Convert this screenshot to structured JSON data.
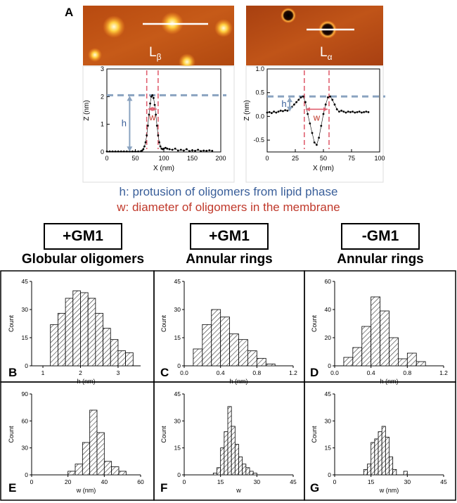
{
  "panel_letters": {
    "A": "A",
    "B": "B",
    "C": "C",
    "D": "D",
    "E": "E",
    "F": "F",
    "G": "G"
  },
  "afm": {
    "left": {
      "label": "L",
      "sub": "β"
    },
    "right": {
      "label": "L",
      "sub": "α"
    }
  },
  "captions": {
    "h": "h: protusion of oligomers from lipid phase",
    "w": "w: diameter of oligomers in the membrane"
  },
  "colors": {
    "h_caption": "#3a5f9a",
    "w_caption": "#c0392b",
    "dashed": "#8aa3c0",
    "red_line": "#e06070",
    "arrow_blue": "#8aa3c0",
    "arrow_red": "#e06070"
  },
  "conditions": [
    {
      "box": "+GM1",
      "subtitle": "Globular oligomers"
    },
    {
      "box": "+GM1",
      "subtitle": "Annular rings"
    },
    {
      "box": "-GM1",
      "subtitle": "Annular rings"
    }
  ],
  "chart_data": [
    {
      "id": "A-left",
      "type": "line",
      "xlabel": "X (nm)",
      "ylabel": "Z (nm)",
      "xlim": [
        0,
        200
      ],
      "ylim": [
        0,
        3
      ],
      "xticks": [
        0,
        50,
        100,
        150,
        200
      ],
      "yticks": [
        0,
        1,
        2,
        3
      ],
      "dashed_h": 2.05,
      "red_lines": [
        70,
        90
      ],
      "h_label": "h",
      "w_label": "w",
      "x": [
        0,
        5,
        10,
        15,
        20,
        25,
        30,
        35,
        40,
        45,
        50,
        55,
        60,
        62,
        64,
        66,
        68,
        70,
        72,
        74,
        76,
        78,
        80,
        82,
        84,
        86,
        88,
        90,
        92,
        94,
        96,
        98,
        100,
        103,
        106,
        110,
        115,
        120,
        125,
        130,
        135,
        140,
        145,
        150,
        155,
        160,
        165,
        170,
        175,
        180,
        185
      ],
      "y": [
        0.02,
        0.02,
        0.02,
        0.02,
        0.02,
        0.02,
        0.02,
        0.02,
        0.02,
        0.02,
        0.02,
        0.02,
        0.03,
        0.05,
        0.1,
        0.2,
        0.35,
        0.6,
        0.95,
        1.35,
        1.75,
        2.0,
        2.05,
        1.95,
        1.7,
        1.35,
        0.95,
        0.6,
        0.35,
        0.2,
        0.12,
        0.1,
        0.12,
        0.15,
        0.12,
        0.1,
        0.08,
        0.12,
        0.05,
        0.08,
        0.05,
        0.1,
        0.03,
        0.06,
        0.04,
        0.08,
        0.03,
        0.05,
        0.04,
        0.06,
        0.04
      ]
    },
    {
      "id": "A-right",
      "type": "line",
      "xlabel": "X (nm)",
      "ylabel": "Z (nm)",
      "xlim": [
        0,
        100
      ],
      "ylim": [
        -0.75,
        1.0
      ],
      "xticks": [
        0,
        25,
        50,
        75,
        100
      ],
      "yticks": [
        -0.5,
        0.0,
        0.5,
        1.0
      ],
      "ytick_labels": [
        "-0.5",
        "0.0",
        "0.5",
        "1.0"
      ],
      "dashed_h": 0.42,
      "red_lines": [
        33,
        55
      ],
      "h_label": "h",
      "w_label": "w",
      "x": [
        0,
        2,
        4,
        6,
        8,
        10,
        12,
        14,
        16,
        18,
        20,
        22,
        24,
        26,
        28,
        30,
        32,
        34,
        36,
        38,
        40,
        42,
        44,
        46,
        48,
        50,
        52,
        54,
        56,
        58,
        60,
        62,
        64,
        66,
        68,
        70,
        72,
        74,
        76,
        78,
        80,
        82,
        84,
        86,
        88,
        90
      ],
      "y": [
        0.08,
        0.09,
        0.07,
        0.1,
        0.08,
        0.1,
        0.12,
        0.11,
        0.13,
        0.12,
        0.15,
        0.2,
        0.25,
        0.3,
        0.35,
        0.4,
        0.42,
        0.3,
        0.05,
        -0.15,
        -0.35,
        -0.55,
        -0.6,
        -0.45,
        -0.2,
        0.05,
        0.25,
        0.4,
        0.42,
        0.35,
        0.25,
        0.15,
        0.1,
        0.12,
        0.1,
        0.08,
        0.1,
        0.09,
        0.1,
        0.08,
        0.09,
        0.1,
        0.08,
        0.09,
        0.1,
        0.09
      ]
    },
    {
      "id": "B",
      "type": "bar",
      "xlabel": "h (nm)",
      "ylabel": "Count",
      "xlim": [
        0.7,
        3.6
      ],
      "ylim": [
        0,
        45
      ],
      "xticks": [
        1,
        2,
        3
      ],
      "xtick_labels": [
        "1",
        "2",
        "3"
      ],
      "yticks": [
        0,
        15,
        30,
        45
      ],
      "bin_width": 0.2,
      "bins": [
        1.2,
        1.4,
        1.6,
        1.8,
        2.0,
        2.2,
        2.4,
        2.6,
        2.8,
        3.0,
        3.2
      ],
      "values": [
        22,
        28,
        36,
        40,
        39,
        36,
        28,
        20,
        14,
        8,
        7
      ]
    },
    {
      "id": "C",
      "type": "bar",
      "xlabel": "h (nm)",
      "ylabel": "Count",
      "xlim": [
        0,
        1.2
      ],
      "ylim": [
        0,
        45
      ],
      "xticks": [
        0,
        0.4,
        0.8,
        1.2
      ],
      "xtick_labels": [
        "0.0",
        "0.4",
        "0.8",
        "1.2"
      ],
      "yticks": [
        0,
        15,
        30,
        45
      ],
      "bin_width": 0.1,
      "bins": [
        0.1,
        0.2,
        0.3,
        0.4,
        0.5,
        0.6,
        0.7,
        0.8,
        0.9
      ],
      "values": [
        9,
        22,
        30,
        26,
        17,
        14,
        8,
        4,
        1
      ]
    },
    {
      "id": "D",
      "type": "bar",
      "xlabel": "h (nm)",
      "ylabel": "Count",
      "xlim": [
        0,
        1.2
      ],
      "ylim": [
        0,
        60
      ],
      "xticks": [
        0,
        0.4,
        0.8,
        1.2
      ],
      "xtick_labels": [
        "0.0",
        "0.4",
        "0.8",
        "1.2"
      ],
      "yticks": [
        0,
        20,
        40,
        60
      ],
      "bin_width": 0.1,
      "bins": [
        0.1,
        0.2,
        0.3,
        0.4,
        0.5,
        0.6,
        0.7,
        0.8,
        0.9
      ],
      "values": [
        6,
        13,
        28,
        49,
        39,
        20,
        5,
        9,
        3
      ]
    },
    {
      "id": "E",
      "type": "bar",
      "xlabel": "w (nm)",
      "ylabel": "Count",
      "xlim": [
        0,
        60
      ],
      "ylim": [
        0,
        90
      ],
      "xticks": [
        0,
        20,
        40,
        60
      ],
      "xtick_labels": [
        "0",
        "20",
        "40",
        "60"
      ],
      "yticks": [
        0,
        30,
        60,
        90
      ],
      "bin_width": 4,
      "bins": [
        20,
        24,
        28,
        32,
        36,
        40,
        44,
        48
      ],
      "values": [
        4,
        12,
        36,
        72,
        47,
        15,
        9,
        4
      ]
    },
    {
      "id": "F",
      "type": "bar",
      "xlabel": "w",
      "ylabel": "Count",
      "xlim": [
        0,
        45
      ],
      "ylim": [
        0,
        45
      ],
      "xticks": [
        0,
        15,
        30,
        45
      ],
      "xtick_labels": [
        "0",
        "15",
        "30",
        "45"
      ],
      "yticks": [
        0,
        15,
        30,
        45
      ],
      "bin_width": 1.5,
      "bins": [
        12,
        13.5,
        15,
        16.5,
        18,
        19.5,
        21,
        22.5,
        24,
        25.5,
        27,
        28.5
      ],
      "values": [
        1,
        4,
        15,
        24,
        38,
        27,
        17,
        10,
        6,
        4,
        2,
        1
      ]
    },
    {
      "id": "G",
      "type": "bar",
      "xlabel": "w (nm)",
      "ylabel": "Count",
      "xlim": [
        0,
        45
      ],
      "ylim": [
        0,
        45
      ],
      "xticks": [
        0,
        15,
        30,
        45
      ],
      "xtick_labels": [
        "0",
        "15",
        "30",
        "45"
      ],
      "yticks": [
        0,
        15,
        30,
        45
      ],
      "bin_width": 1.5,
      "bins": [
        12,
        13.5,
        15,
        16.5,
        18,
        19.5,
        21,
        22.5,
        24,
        28.5
      ],
      "values": [
        3,
        6,
        18,
        20,
        24,
        27,
        21,
        10,
        3,
        2
      ]
    }
  ]
}
